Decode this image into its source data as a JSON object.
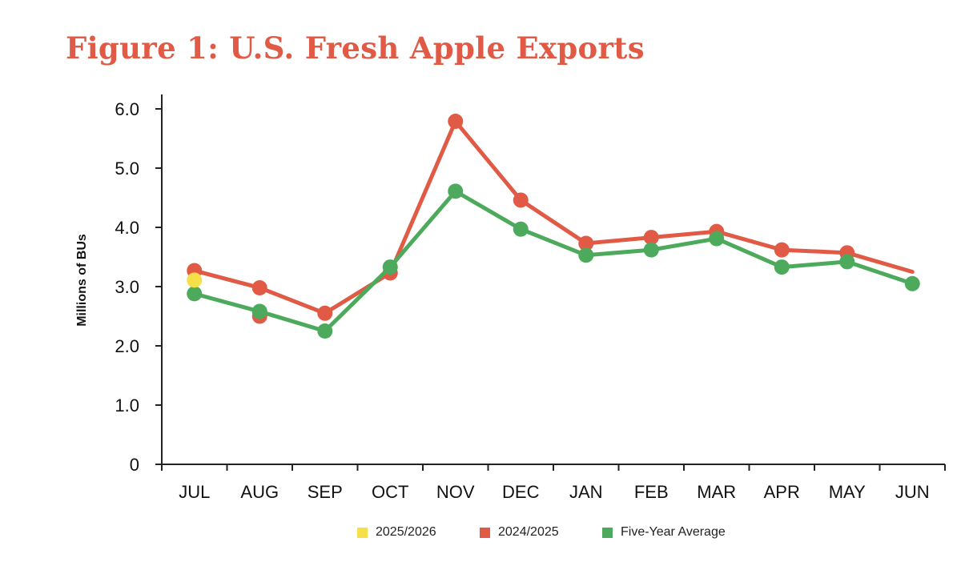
{
  "title": "Figure 1: U.S. Fresh Apple Exports",
  "colors": {
    "title": "#E05A45",
    "axis": "#222222"
  },
  "chart_data": {
    "type": "line",
    "title": "Figure 1: U.S. Fresh Apple Exports",
    "xlabel": "",
    "ylabel": "Millions of BUs",
    "categories": [
      "JUL",
      "AUG",
      "SEP",
      "OCT",
      "NOV",
      "DEC",
      "JAN",
      "FEB",
      "MAR",
      "APR",
      "MAY",
      "JUN"
    ],
    "ylim": [
      0,
      6
    ],
    "yticks": [
      0,
      1,
      2,
      3,
      4,
      5,
      6
    ],
    "ytick_labels": [
      "0",
      "1.0",
      "2.0",
      "3.0",
      "4.0",
      "5.0",
      "6.0"
    ],
    "grid": false,
    "legend_position": "bottom",
    "series": [
      {
        "name": "2024/2025",
        "color": "#E05A45",
        "values": [
          3.27,
          2.98,
          2.55,
          3.23,
          5.79,
          4.46,
          3.73,
          3.83,
          3.93,
          3.62,
          3.57,
          3.25
        ],
        "markers": [
          true,
          true,
          true,
          true,
          true,
          true,
          true,
          true,
          true,
          true,
          true,
          false
        ],
        "extra_points": [
          {
            "category": "AUG",
            "value": 2.5
          }
        ]
      },
      {
        "name": "Five-Year Average",
        "color": "#4DAA5C",
        "values": [
          2.88,
          2.58,
          2.25,
          3.33,
          4.61,
          3.97,
          3.53,
          3.62,
          3.81,
          3.33,
          3.42,
          3.05
        ],
        "markers": [
          true,
          true,
          true,
          true,
          true,
          true,
          true,
          true,
          true,
          true,
          true,
          true
        ]
      },
      {
        "name": "2025/2026",
        "color": "#F5E04A",
        "values": [
          3.11,
          null,
          null,
          null,
          null,
          null,
          null,
          null,
          null,
          null,
          null,
          null
        ],
        "markers": [
          true,
          false,
          false,
          false,
          false,
          false,
          false,
          false,
          false,
          false,
          false,
          false
        ]
      }
    ]
  },
  "legend": [
    {
      "label": "2025/2026",
      "color": "#F5E04A"
    },
    {
      "label": "2024/2025",
      "color": "#E05A45"
    },
    {
      "label": "Five-Year Average",
      "color": "#4DAA5C"
    }
  ]
}
